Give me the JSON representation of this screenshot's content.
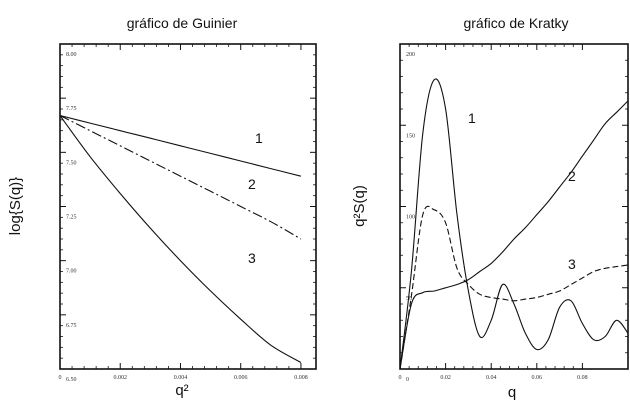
{
  "chart_data": [
    {
      "type": "line",
      "title": "gráfico de Guinier",
      "xlabel": "q²",
      "ylabel": "log{S(q)}",
      "xlim": [
        0,
        0.0085
      ],
      "ylim": [
        6.5,
        8.0
      ],
      "xticks": [
        "0",
        "0.002",
        "0.004",
        "0.006",
        "0.008"
      ],
      "yticks": [
        "6.50",
        "6.75",
        "7.00",
        "7.25",
        "7.50",
        "7.75",
        "8.00"
      ],
      "series": [
        {
          "name": "1",
          "x": [
            0.0,
            0.001,
            0.002,
            0.003,
            0.004,
            0.005,
            0.006,
            0.007,
            0.008
          ],
          "y": [
            7.67,
            7.635,
            7.6,
            7.565,
            7.53,
            7.495,
            7.46,
            7.425,
            7.39
          ]
        },
        {
          "name": "2",
          "x": [
            0.0,
            0.001,
            0.002,
            0.003,
            0.004,
            0.005,
            0.006,
            0.007,
            0.008
          ],
          "y": [
            7.67,
            7.6,
            7.53,
            7.46,
            7.39,
            7.32,
            7.25,
            7.18,
            7.1
          ]
        },
        {
          "name": "3",
          "x": [
            0.0,
            0.001,
            0.002,
            0.003,
            0.004,
            0.005,
            0.006,
            0.007,
            0.008
          ],
          "y": [
            7.67,
            7.48,
            7.31,
            7.15,
            7.0,
            6.86,
            6.73,
            6.61,
            6.53
          ]
        }
      ]
    },
    {
      "type": "line",
      "title": "gráfico de Kratky",
      "xlabel": "q",
      "ylabel": "q²S(q)",
      "xlim": [
        0,
        0.1
      ],
      "ylim": [
        0,
        200
      ],
      "xticks": [
        "0",
        "0.02",
        "0.04",
        "0.06",
        "0.08"
      ],
      "yticks": [
        "0",
        "50",
        "100",
        "150",
        "200"
      ],
      "series": [
        {
          "name": "1",
          "x": [
            0,
            0.005,
            0.01,
            0.015,
            0.02,
            0.025,
            0.03,
            0.035,
            0.04,
            0.045,
            0.05,
            0.055,
            0.06,
            0.065,
            0.07,
            0.075,
            0.08,
            0.085,
            0.09,
            0.095,
            0.1
          ],
          "y": [
            0,
            60,
            145,
            178,
            160,
            95,
            48,
            20,
            30,
            52,
            40,
            22,
            12,
            18,
            38,
            42,
            28,
            18,
            20,
            30,
            22
          ]
        },
        {
          "name": "2",
          "x": [
            0,
            0.005,
            0.01,
            0.015,
            0.02,
            0.025,
            0.03,
            0.035,
            0.04,
            0.045,
            0.05,
            0.055,
            0.06,
            0.065,
            0.07,
            0.075,
            0.08,
            0.085,
            0.09,
            0.095,
            0.1
          ],
          "y": [
            0,
            40,
            47,
            48,
            50,
            52,
            55,
            60,
            65,
            72,
            80,
            87,
            95,
            103,
            112,
            121,
            131,
            141,
            151,
            158,
            165
          ]
        },
        {
          "name": "3",
          "x": [
            0,
            0.005,
            0.01,
            0.015,
            0.02,
            0.025,
            0.03,
            0.035,
            0.04,
            0.045,
            0.05,
            0.055,
            0.06,
            0.065,
            0.07,
            0.075,
            0.08,
            0.085,
            0.09,
            0.095,
            0.1
          ],
          "y": [
            0,
            45,
            95,
            98,
            90,
            62,
            52,
            46,
            44,
            43,
            42,
            43,
            44,
            46,
            48,
            52,
            56,
            60,
            62,
            63,
            64
          ]
        }
      ]
    }
  ]
}
